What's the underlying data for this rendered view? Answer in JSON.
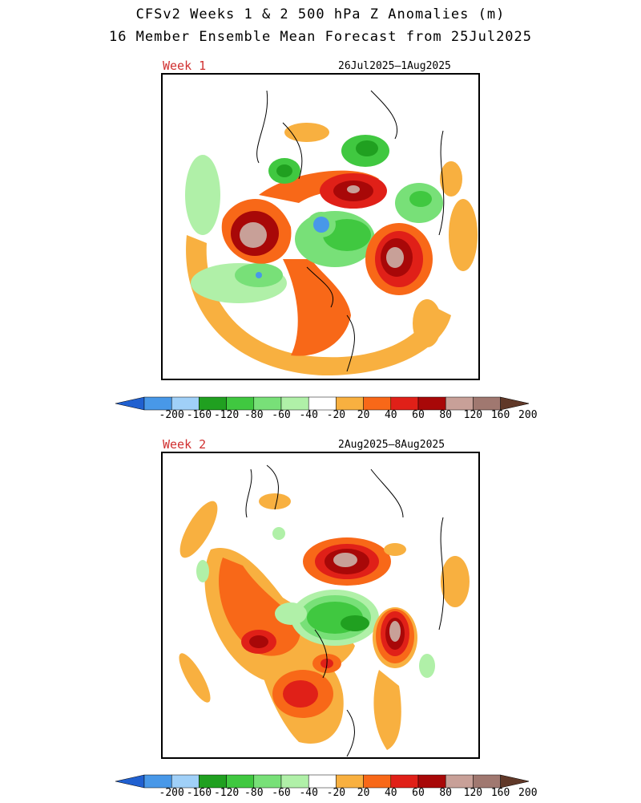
{
  "title_line1": "CFSv2 Weeks 1 & 2 500 hPa Z Anomalies (m)",
  "title_line2": "16 Member Ensemble Mean Forecast from 25Jul2025",
  "panels": [
    {
      "label": "Week 1",
      "dates": "26Jul2025–1Aug2025"
    },
    {
      "label": "Week 2",
      "dates": "2Aug2025–8Aug2025"
    }
  ],
  "colorbar": {
    "ticks": [
      "-200",
      "-160",
      "-120",
      "-80",
      "-60",
      "-40",
      "-20",
      "20",
      "40",
      "60",
      "80",
      "120",
      "160",
      "200"
    ],
    "colors": [
      "#2060d0",
      "#4898e8",
      "#a0d0f8",
      "#20a020",
      "#40c840",
      "#78e078",
      "#b0f0a8",
      "#ffffff",
      "#f8b040",
      "#f86818",
      "#e02018",
      "#a80808",
      "#c8a098",
      "#a07870",
      "#603828"
    ]
  }
}
